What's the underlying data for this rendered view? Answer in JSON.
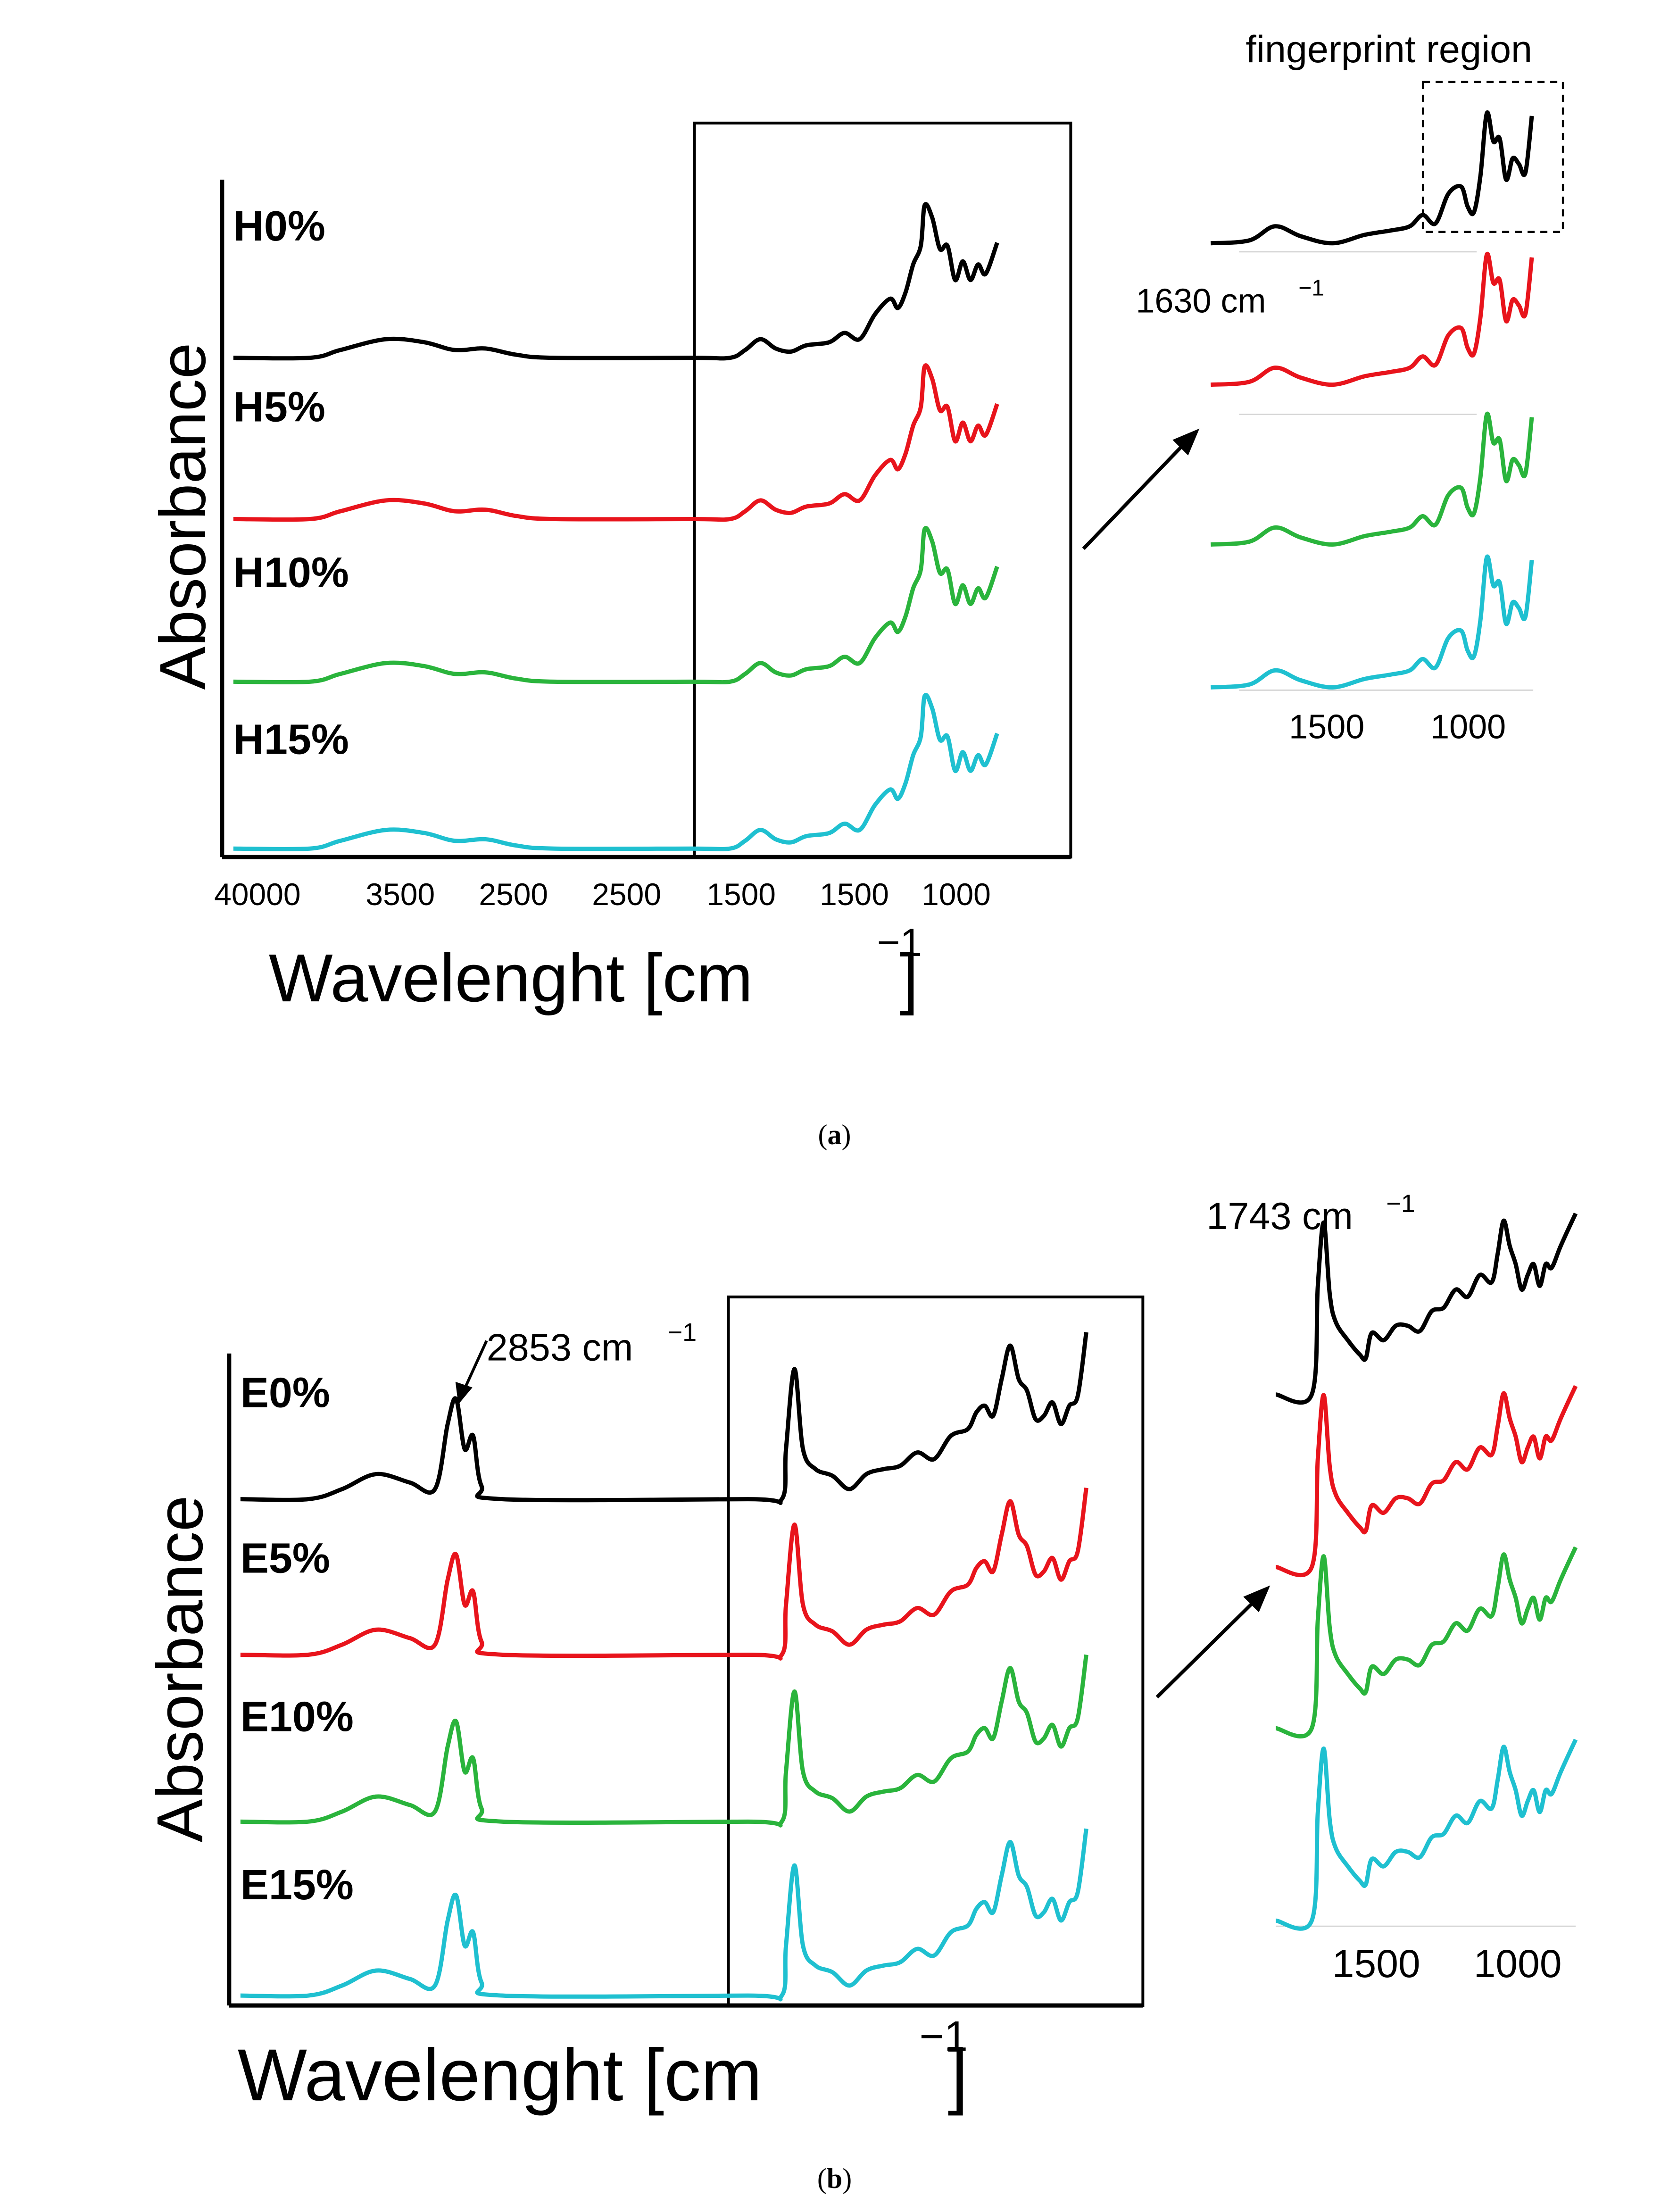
{
  "chart_data": [
    {
      "type": "line",
      "panel": "a",
      "caption_letter": "a",
      "ylabel": "Absorbance",
      "xlabel": "Wavelenght [cm",
      "xlabel_sup": "−1",
      "xlabel_tail": "]",
      "xticks": [
        "40000",
        "3500",
        "2500",
        "2500",
        "1500",
        "1500",
        "1000"
      ],
      "series": [
        {
          "name": "H0%",
          "color": "#000000"
        },
        {
          "name": "H5%",
          "color": "#e8141c"
        },
        {
          "name": "H10%",
          "color": "#2ab43c"
        },
        {
          "name": "H15%",
          "color": "#1fc0d0"
        }
      ],
      "inset": {
        "title": "fingerprint region",
        "annotation": "1630 cm",
        "annotation_sup": "−1",
        "xticks": [
          "1500",
          "1000"
        ]
      }
    },
    {
      "type": "line",
      "panel": "b",
      "caption_letter": "b",
      "ylabel": "Absorbance",
      "xlabel": "Wavelenght [cm",
      "xlabel_sup": "−1",
      "xlabel_tail": "]",
      "annotation": "2853 cm",
      "annotation_sup": "−1",
      "series": [
        {
          "name": "E0%",
          "color": "#000000"
        },
        {
          "name": "E5%",
          "color": "#e8141c"
        },
        {
          "name": "E10%",
          "color": "#2ab43c"
        },
        {
          "name": "E15%",
          "color": "#1fc0d0"
        }
      ],
      "inset": {
        "annotation": "1743 cm",
        "annotation_sup": "−1",
        "xticks": [
          "1500",
          "1000"
        ]
      }
    }
  ]
}
